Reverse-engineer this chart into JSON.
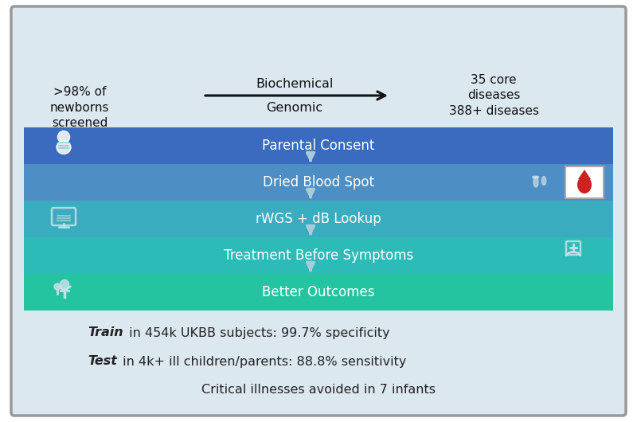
{
  "background_color": "#dce8f0",
  "border_color": "#999999",
  "top_left_text": ">98% of\nnewborns\nscreened",
  "top_middle_top": "Biochemical",
  "top_middle_bottom": "Genomic",
  "top_right_text": "35 core\ndiseases\n388+ diseases",
  "arrow_color": "#111111",
  "flow_bars": [
    {
      "label": "Parental Consent",
      "color": "#3b6bbf",
      "icon_side": "left"
    },
    {
      "label": "Dried Blood Spot",
      "color": "#4d8ec4",
      "icon_side": "right"
    },
    {
      "label": "rWGS + dB Lookup",
      "color": "#3aacc0",
      "icon_side": "left"
    },
    {
      "label": "Treatment Before Symptoms",
      "color": "#2dbbb8",
      "icon_side": "right"
    },
    {
      "label": "Better Outcomes",
      "color": "#25c4a0",
      "icon_side": "left"
    }
  ],
  "connector_arrow_color": "#a8ccd8",
  "bottom_texts": [
    {
      "bold": "Train",
      "rest": " in 454k UKBB subjects: 99.7% specificity"
    },
    {
      "bold": "Test",
      "rest": " in 4k+ ill children/parents: 88.8% sensitivity"
    },
    {
      "bold": "",
      "rest": "Critical illnesses avoided in 7 infants"
    }
  ],
  "text_color_flow": "#ffffff",
  "text_color_bottom": "#222222",
  "figsize": [
    8.0,
    5.3
  ],
  "dpi": 100
}
